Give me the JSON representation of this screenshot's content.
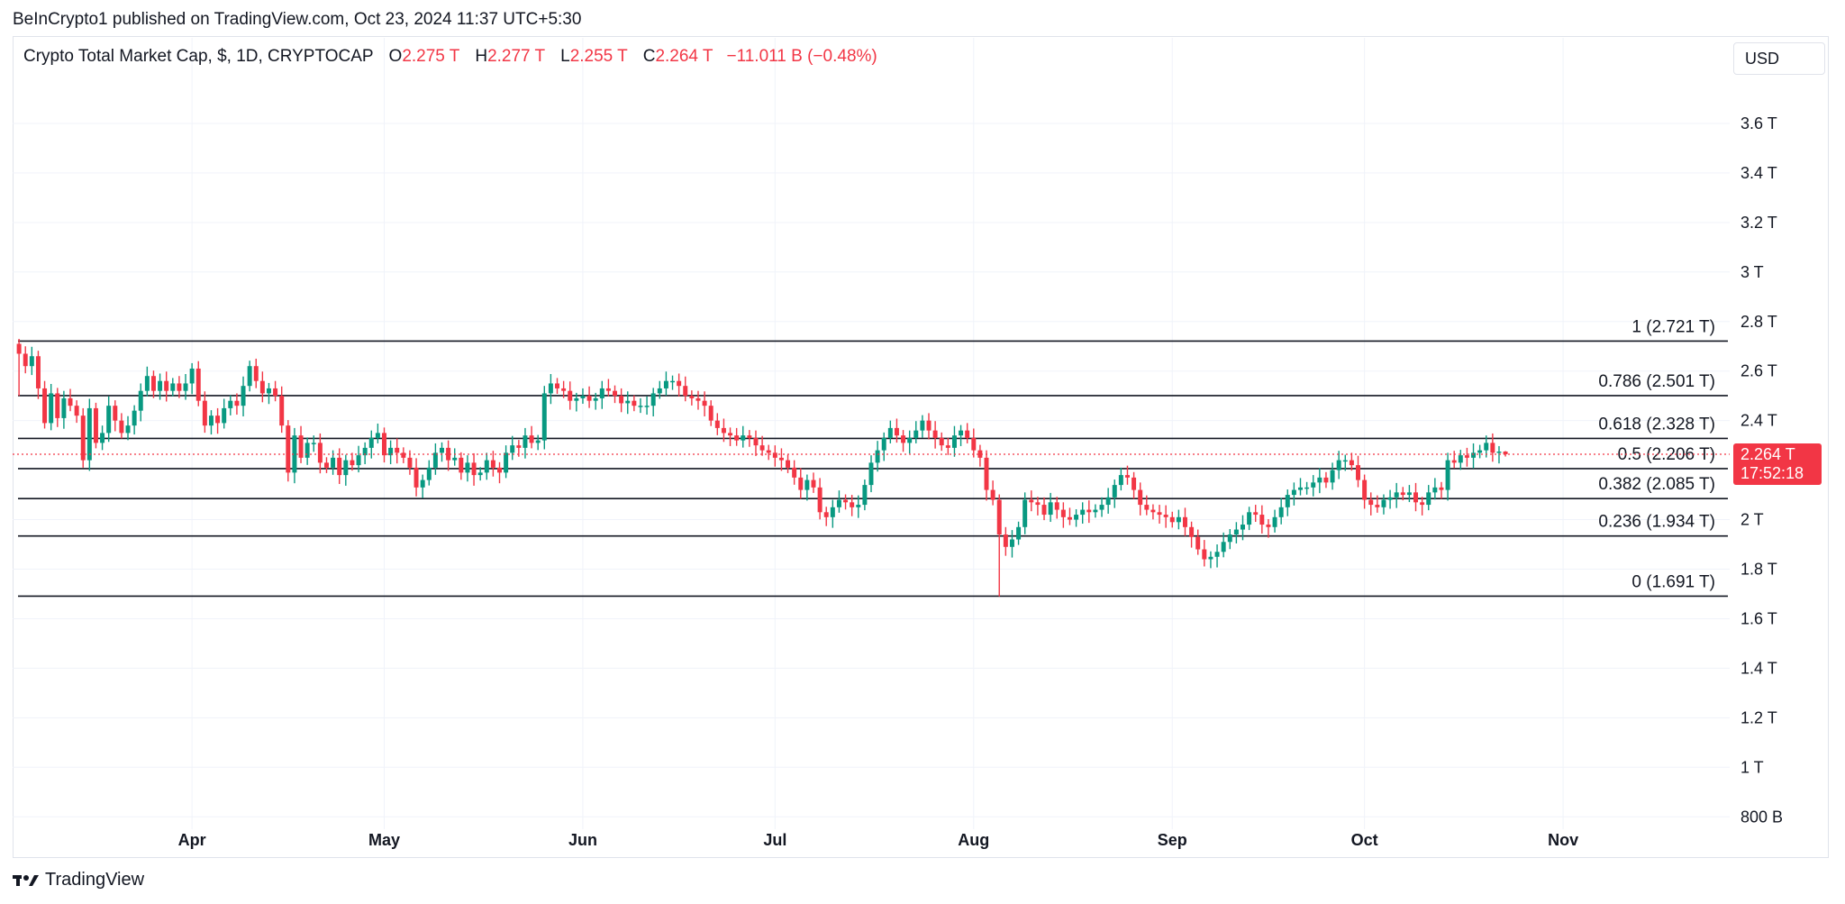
{
  "publisher_line": "BeInCrypto1 published on TradingView.com, Oct 23, 2024 11:37 UTC+5:30",
  "legend": {
    "symbol": "Crypto Total Market Cap, $, 1D, CRYPTOCAP",
    "open_label": "O",
    "open_value": "2.275 T",
    "high_label": "H",
    "high_value": "2.277 T",
    "low_label": "L",
    "low_value": "2.255 T",
    "close_label": "C",
    "close_value": "2.264 T",
    "change": "−11.011 B (−0.48%)"
  },
  "currency_button": "USD",
  "brand": "TradingView",
  "colors": {
    "up": "#089981",
    "down": "#f23645",
    "grid": "#f0f3fa",
    "fib": "#131722",
    "text": "#131722"
  },
  "price_badge": {
    "price": "2.264 T",
    "countdown": "17:52:18"
  },
  "chart_data": {
    "type": "candlestick",
    "title": "Crypto Total Market Cap, $, 1D, CRYPTOCAP",
    "unit": "T",
    "y_ticks": [
      {
        "value": 3.6,
        "label": "3.6 T"
      },
      {
        "value": 3.4,
        "label": "3.4 T"
      },
      {
        "value": 3.2,
        "label": "3.2 T"
      },
      {
        "value": 3.0,
        "label": "3 T"
      },
      {
        "value": 2.8,
        "label": "2.8 T"
      },
      {
        "value": 2.6,
        "label": "2.6 T"
      },
      {
        "value": 2.4,
        "label": "2.4 T"
      },
      {
        "value": 2.0,
        "label": "2 T"
      },
      {
        "value": 1.8,
        "label": "1.8 T"
      },
      {
        "value": 1.6,
        "label": "1.6 T"
      },
      {
        "value": 1.4,
        "label": "1.4 T"
      },
      {
        "value": 1.2,
        "label": "1.2 T"
      },
      {
        "value": 1.0,
        "label": "1 T"
      },
      {
        "value": 0.8,
        "label": "800 B"
      }
    ],
    "ylim": [
      0.75,
      3.8
    ],
    "x_ticks": [
      {
        "date": "2024-04-01",
        "label": "Apr"
      },
      {
        "date": "2024-05-01",
        "label": "May"
      },
      {
        "date": "2024-06-01",
        "label": "Jun"
      },
      {
        "date": "2024-07-01",
        "label": "Jul"
      },
      {
        "date": "2024-08-01",
        "label": "Aug"
      },
      {
        "date": "2024-09-01",
        "label": "Sep"
      },
      {
        "date": "2024-10-01",
        "label": "Oct"
      },
      {
        "date": "2024-11-01",
        "label": "Nov"
      }
    ],
    "xlim": [
      "2024-03-04",
      "2024-11-27"
    ],
    "fib_levels": [
      {
        "value": 2.721,
        "label": "1 (2.721 T)"
      },
      {
        "value": 2.501,
        "label": "0.786 (2.501 T)"
      },
      {
        "value": 2.328,
        "label": "0.618 (2.328 T)"
      },
      {
        "value": 2.206,
        "label": "0.5 (2.206 T)"
      },
      {
        "value": 2.085,
        "label": "0.382 (2.085 T)"
      },
      {
        "value": 1.934,
        "label": "0.236 (1.934 T)"
      },
      {
        "value": 1.691,
        "label": "0 (1.691 T)"
      }
    ],
    "last_price": 2.264,
    "series": [
      {
        "date": "2024-03-05",
        "close": 2.67,
        "high": 2.73,
        "low": 2.5
      },
      {
        "date": "2024-03-06",
        "close": 2.62
      },
      {
        "date": "2024-03-07",
        "close": 2.66
      },
      {
        "date": "2024-03-08",
        "close": 2.53
      },
      {
        "date": "2024-03-09",
        "close": 2.39
      },
      {
        "date": "2024-03-10",
        "close": 2.51
      },
      {
        "date": "2024-03-11",
        "close": 2.41
      },
      {
        "date": "2024-03-12",
        "close": 2.49
      },
      {
        "date": "2024-03-13",
        "close": 2.46
      },
      {
        "date": "2024-03-14",
        "close": 2.42
      },
      {
        "date": "2024-03-15",
        "close": 2.24,
        "low": 2.21
      },
      {
        "date": "2024-03-16",
        "close": 2.45
      },
      {
        "date": "2024-03-17",
        "close": 2.31
      },
      {
        "date": "2024-03-18",
        "close": 2.35
      },
      {
        "date": "2024-03-19",
        "close": 2.46
      },
      {
        "date": "2024-03-20",
        "close": 2.4
      },
      {
        "date": "2024-03-21",
        "close": 2.35
      },
      {
        "date": "2024-03-22",
        "close": 2.38
      },
      {
        "date": "2024-03-23",
        "close": 2.44
      },
      {
        "date": "2024-03-24",
        "close": 2.52
      },
      {
        "date": "2024-03-25",
        "close": 2.58
      },
      {
        "date": "2024-03-26",
        "close": 2.52
      },
      {
        "date": "2024-03-27",
        "close": 2.56
      },
      {
        "date": "2024-03-28",
        "close": 2.52
      },
      {
        "date": "2024-03-29",
        "close": 2.55
      },
      {
        "date": "2024-03-30",
        "close": 2.52
      },
      {
        "date": "2024-03-31",
        "close": 2.55
      },
      {
        "date": "2024-04-01",
        "close": 2.61
      },
      {
        "date": "2024-04-02",
        "close": 2.48
      },
      {
        "date": "2024-04-03",
        "close": 2.38
      },
      {
        "date": "2024-04-04",
        "close": 2.42
      },
      {
        "date": "2024-04-05",
        "close": 2.39
      },
      {
        "date": "2024-04-06",
        "close": 2.45
      },
      {
        "date": "2024-04-07",
        "close": 2.48
      },
      {
        "date": "2024-04-08",
        "close": 2.46
      },
      {
        "date": "2024-04-09",
        "close": 2.54
      },
      {
        "date": "2024-04-10",
        "close": 2.62
      },
      {
        "date": "2024-04-11",
        "close": 2.56
      },
      {
        "date": "2024-04-12",
        "close": 2.51
      },
      {
        "date": "2024-04-13",
        "close": 2.53
      },
      {
        "date": "2024-04-14",
        "close": 2.5
      },
      {
        "date": "2024-04-15",
        "close": 2.38
      },
      {
        "date": "2024-04-16",
        "close": 2.19
      },
      {
        "date": "2024-04-17",
        "close": 2.34
      },
      {
        "date": "2024-04-18",
        "close": 2.25
      },
      {
        "date": "2024-04-19",
        "close": 2.31
      },
      {
        "date": "2024-04-20",
        "close": 2.31
      },
      {
        "date": "2024-04-21",
        "close": 2.23
      },
      {
        "date": "2024-04-22",
        "close": 2.21
      },
      {
        "date": "2024-04-23",
        "close": 2.25
      },
      {
        "date": "2024-04-24",
        "close": 2.18
      },
      {
        "date": "2024-04-25",
        "close": 2.24
      },
      {
        "date": "2024-04-26",
        "close": 2.22
      },
      {
        "date": "2024-04-27",
        "close": 2.26
      },
      {
        "date": "2024-04-28",
        "close": 2.29
      },
      {
        "date": "2024-04-29",
        "close": 2.33
      },
      {
        "date": "2024-04-30",
        "close": 2.35
      },
      {
        "date": "2024-05-01",
        "close": 2.26
      },
      {
        "date": "2024-05-02",
        "close": 2.29
      },
      {
        "date": "2024-05-03",
        "close": 2.27
      },
      {
        "date": "2024-05-04",
        "close": 2.25
      },
      {
        "date": "2024-05-05",
        "close": 2.21
      },
      {
        "date": "2024-05-06",
        "close": 2.13
      },
      {
        "date": "2024-05-07",
        "close": 2.16
      },
      {
        "date": "2024-05-08",
        "close": 2.21
      },
      {
        "date": "2024-05-09",
        "close": 2.27
      },
      {
        "date": "2024-05-10",
        "close": 2.29
      },
      {
        "date": "2024-05-11",
        "close": 2.24
      },
      {
        "date": "2024-05-12",
        "close": 2.25
      },
      {
        "date": "2024-05-13",
        "close": 2.19
      },
      {
        "date": "2024-05-14",
        "close": 2.23
      },
      {
        "date": "2024-05-15",
        "close": 2.18
      },
      {
        "date": "2024-05-16",
        "close": 2.19
      },
      {
        "date": "2024-05-17",
        "close": 2.24
      },
      {
        "date": "2024-05-18",
        "close": 2.21
      },
      {
        "date": "2024-05-19",
        "close": 2.19
      },
      {
        "date": "2024-05-20",
        "close": 2.27
      },
      {
        "date": "2024-05-21",
        "close": 2.3
      },
      {
        "date": "2024-05-22",
        "close": 2.29
      },
      {
        "date": "2024-05-23",
        "close": 2.34
      },
      {
        "date": "2024-05-24",
        "close": 2.31
      },
      {
        "date": "2024-05-25",
        "close": 2.32
      },
      {
        "date": "2024-05-26",
        "close": 2.51
      },
      {
        "date": "2024-05-27",
        "close": 2.55
      },
      {
        "date": "2024-05-28",
        "close": 2.53
      },
      {
        "date": "2024-05-29",
        "close": 2.52
      },
      {
        "date": "2024-05-30",
        "close": 2.48
      },
      {
        "date": "2024-05-31",
        "close": 2.49
      },
      {
        "date": "2024-06-01",
        "close": 2.5
      },
      {
        "date": "2024-06-02",
        "close": 2.48
      },
      {
        "date": "2024-06-03",
        "close": 2.49
      },
      {
        "date": "2024-06-04",
        "close": 2.53
      },
      {
        "date": "2024-06-05",
        "close": 2.52
      },
      {
        "date": "2024-06-06",
        "close": 2.5
      },
      {
        "date": "2024-06-07",
        "close": 2.47
      },
      {
        "date": "2024-06-08",
        "close": 2.48
      },
      {
        "date": "2024-06-09",
        "close": 2.46
      },
      {
        "date": "2024-06-10",
        "close": 2.46
      },
      {
        "date": "2024-06-11",
        "close": 2.46
      },
      {
        "date": "2024-06-12",
        "close": 2.51
      },
      {
        "date": "2024-06-13",
        "close": 2.53
      },
      {
        "date": "2024-06-14",
        "close": 2.56
      },
      {
        "date": "2024-06-15",
        "close": 2.56
      },
      {
        "date": "2024-06-16",
        "close": 2.54
      },
      {
        "date": "2024-06-17",
        "close": 2.5
      },
      {
        "date": "2024-06-18",
        "close": 2.49
      },
      {
        "date": "2024-06-19",
        "close": 2.48
      },
      {
        "date": "2024-06-20",
        "close": 2.46
      },
      {
        "date": "2024-06-21",
        "close": 2.4
      },
      {
        "date": "2024-06-22",
        "close": 2.37
      },
      {
        "date": "2024-06-23",
        "close": 2.35
      },
      {
        "date": "2024-06-24",
        "close": 2.34
      },
      {
        "date": "2024-06-25",
        "close": 2.32
      },
      {
        "date": "2024-06-26",
        "close": 2.34
      },
      {
        "date": "2024-06-27",
        "close": 2.33
      },
      {
        "date": "2024-06-28",
        "close": 2.3
      },
      {
        "date": "2024-06-29",
        "close": 2.28
      },
      {
        "date": "2024-06-30",
        "close": 2.27
      },
      {
        "date": "2024-07-01",
        "close": 2.25
      },
      {
        "date": "2024-07-02",
        "close": 2.24
      },
      {
        "date": "2024-07-03",
        "close": 2.21
      },
      {
        "date": "2024-07-04",
        "close": 2.17
      },
      {
        "date": "2024-07-05",
        "close": 2.12
      },
      {
        "date": "2024-07-06",
        "close": 2.16
      },
      {
        "date": "2024-07-07",
        "close": 2.13
      },
      {
        "date": "2024-07-08",
        "close": 2.03
      },
      {
        "date": "2024-07-09",
        "close": 2.01
      },
      {
        "date": "2024-07-10",
        "close": 2.05
      },
      {
        "date": "2024-07-11",
        "close": 2.08
      },
      {
        "date": "2024-07-12",
        "close": 2.07
      },
      {
        "date": "2024-07-13",
        "close": 2.05
      },
      {
        "date": "2024-07-14",
        "close": 2.06
      },
      {
        "date": "2024-07-15",
        "close": 2.14
      },
      {
        "date": "2024-07-16",
        "close": 2.23
      },
      {
        "date": "2024-07-17",
        "close": 2.28
      },
      {
        "date": "2024-07-18",
        "close": 2.33
      },
      {
        "date": "2024-07-19",
        "close": 2.37
      },
      {
        "date": "2024-07-20",
        "close": 2.34
      },
      {
        "date": "2024-07-21",
        "close": 2.31
      },
      {
        "date": "2024-07-22",
        "close": 2.33
      },
      {
        "date": "2024-07-23",
        "close": 2.36
      },
      {
        "date": "2024-07-24",
        "close": 2.4
      },
      {
        "date": "2024-07-25",
        "close": 2.36
      },
      {
        "date": "2024-07-26",
        "close": 2.33
      },
      {
        "date": "2024-07-27",
        "close": 2.3
      },
      {
        "date": "2024-07-28",
        "close": 2.29
      },
      {
        "date": "2024-07-29",
        "close": 2.34
      },
      {
        "date": "2024-07-30",
        "close": 2.36
      },
      {
        "date": "2024-07-31",
        "close": 2.33
      },
      {
        "date": "2024-08-01",
        "close": 2.28
      },
      {
        "date": "2024-08-02",
        "close": 2.25
      },
      {
        "date": "2024-08-03",
        "close": 2.12
      },
      {
        "date": "2024-08-04",
        "close": 2.08
      },
      {
        "date": "2024-08-05",
        "close": 1.94,
        "low": 1.69
      },
      {
        "date": "2024-08-06",
        "close": 1.89
      },
      {
        "date": "2024-08-07",
        "close": 1.92
      },
      {
        "date": "2024-08-08",
        "close": 1.97
      },
      {
        "date": "2024-08-09",
        "close": 2.08
      },
      {
        "date": "2024-08-10",
        "close": 2.07
      },
      {
        "date": "2024-08-11",
        "close": 2.06
      },
      {
        "date": "2024-08-12",
        "close": 2.02
      },
      {
        "date": "2024-08-13",
        "close": 2.07
      },
      {
        "date": "2024-08-14",
        "close": 2.04
      },
      {
        "date": "2024-08-15",
        "close": 2.01
      },
      {
        "date": "2024-08-16",
        "close": 2.0
      },
      {
        "date": "2024-08-17",
        "close": 2.02
      },
      {
        "date": "2024-08-18",
        "close": 2.04
      },
      {
        "date": "2024-08-19",
        "close": 2.03
      },
      {
        "date": "2024-08-20",
        "close": 2.04
      },
      {
        "date": "2024-08-21",
        "close": 2.06
      },
      {
        "date": "2024-08-22",
        "close": 2.09
      },
      {
        "date": "2024-08-23",
        "close": 2.14
      },
      {
        "date": "2024-08-24",
        "close": 2.18
      },
      {
        "date": "2024-08-25",
        "close": 2.17
      },
      {
        "date": "2024-08-26",
        "close": 2.12
      },
      {
        "date": "2024-08-27",
        "close": 2.06
      },
      {
        "date": "2024-08-28",
        "close": 2.04
      },
      {
        "date": "2024-08-29",
        "close": 2.03
      },
      {
        "date": "2024-08-30",
        "close": 2.02
      },
      {
        "date": "2024-08-31",
        "close": 2.01
      },
      {
        "date": "2024-09-01",
        "close": 1.99
      },
      {
        "date": "2024-09-02",
        "close": 2.01
      },
      {
        "date": "2024-09-03",
        "close": 1.97
      },
      {
        "date": "2024-09-04",
        "close": 1.93
      },
      {
        "date": "2024-09-05",
        "close": 1.88
      },
      {
        "date": "2024-09-06",
        "close": 1.84
      },
      {
        "date": "2024-09-07",
        "close": 1.85
      },
      {
        "date": "2024-09-08",
        "close": 1.87
      },
      {
        "date": "2024-09-09",
        "close": 1.91
      },
      {
        "date": "2024-09-10",
        "close": 1.94
      },
      {
        "date": "2024-09-11",
        "close": 1.96
      },
      {
        "date": "2024-09-12",
        "close": 1.98
      },
      {
        "date": "2024-09-13",
        "close": 2.03
      },
      {
        "date": "2024-09-14",
        "close": 2.02
      },
      {
        "date": "2024-09-15",
        "close": 1.98
      },
      {
        "date": "2024-09-16",
        "close": 1.97
      },
      {
        "date": "2024-09-17",
        "close": 2.01
      },
      {
        "date": "2024-09-18",
        "close": 2.05
      },
      {
        "date": "2024-09-19",
        "close": 2.1
      },
      {
        "date": "2024-09-20",
        "close": 2.12
      },
      {
        "date": "2024-09-21",
        "close": 2.13
      },
      {
        "date": "2024-09-22",
        "close": 2.13
      },
      {
        "date": "2024-09-23",
        "close": 2.15
      },
      {
        "date": "2024-09-24",
        "close": 2.17
      },
      {
        "date": "2024-09-25",
        "close": 2.15
      },
      {
        "date": "2024-09-26",
        "close": 2.2
      },
      {
        "date": "2024-09-27",
        "close": 2.24
      },
      {
        "date": "2024-09-28",
        "close": 2.24
      },
      {
        "date": "2024-09-29",
        "close": 2.22
      },
      {
        "date": "2024-09-30",
        "close": 2.16
      },
      {
        "date": "2024-10-01",
        "close": 2.08
      },
      {
        "date": "2024-10-02",
        "close": 2.06
      },
      {
        "date": "2024-10-03",
        "close": 2.05
      },
      {
        "date": "2024-10-04",
        "close": 2.08
      },
      {
        "date": "2024-10-05",
        "close": 2.09
      },
      {
        "date": "2024-10-06",
        "close": 2.11
      },
      {
        "date": "2024-10-07",
        "close": 2.1
      },
      {
        "date": "2024-10-08",
        "close": 2.11
      },
      {
        "date": "2024-10-09",
        "close": 2.07
      },
      {
        "date": "2024-10-10",
        "close": 2.06
      },
      {
        "date": "2024-10-11",
        "close": 2.11
      },
      {
        "date": "2024-10-12",
        "close": 2.13
      },
      {
        "date": "2024-10-13",
        "close": 2.12
      },
      {
        "date": "2024-10-14",
        "close": 2.24
      },
      {
        "date": "2024-10-15",
        "close": 2.23
      },
      {
        "date": "2024-10-16",
        "close": 2.26
      },
      {
        "date": "2024-10-17",
        "close": 2.25
      },
      {
        "date": "2024-10-18",
        "close": 2.27
      },
      {
        "date": "2024-10-19",
        "close": 2.28
      },
      {
        "date": "2024-10-20",
        "close": 2.31
      },
      {
        "date": "2024-10-21",
        "close": 2.27
      },
      {
        "date": "2024-10-22",
        "close": 2.275
      },
      {
        "date": "2024-10-23",
        "open": 2.275,
        "high": 2.277,
        "low": 2.255,
        "close": 2.264
      }
    ]
  }
}
